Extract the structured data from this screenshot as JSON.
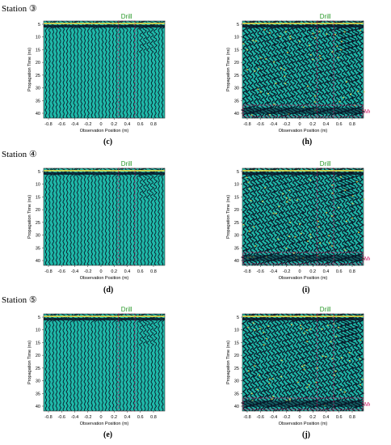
{
  "stations": [
    {
      "label": "Station ③",
      "left_caption": "(c)",
      "right_caption": "(h)",
      "right_metal": true
    },
    {
      "label": "Station ④",
      "left_caption": "(d)",
      "right_caption": "(i)",
      "right_metal": true
    },
    {
      "label": "Station ⑤",
      "left_caption": "(e)",
      "right_caption": "(j)",
      "right_metal": true
    }
  ],
  "labels": {
    "drill": "Drill",
    "metal": "Metal",
    "ylabel": "Propagation Time (ns)",
    "xlabel": "Observation Position (m)"
  },
  "axes": {
    "x_ticks": [
      "-0.8",
      "-0.6",
      "-0.4",
      "-0.2",
      "0",
      "0.2",
      "0.4",
      "0.6",
      "0.8"
    ],
    "y_ticks": [
      "5",
      "10",
      "15",
      "20",
      "25",
      "30",
      "35",
      "40"
    ]
  },
  "colors": {
    "background": "#1fb8a8",
    "trace": "#0a1a2a",
    "highlight": "#f2e24a",
    "drill_label": "#2a9a2a",
    "metal_label": "#d0206a",
    "box": "#d0206a"
  }
}
